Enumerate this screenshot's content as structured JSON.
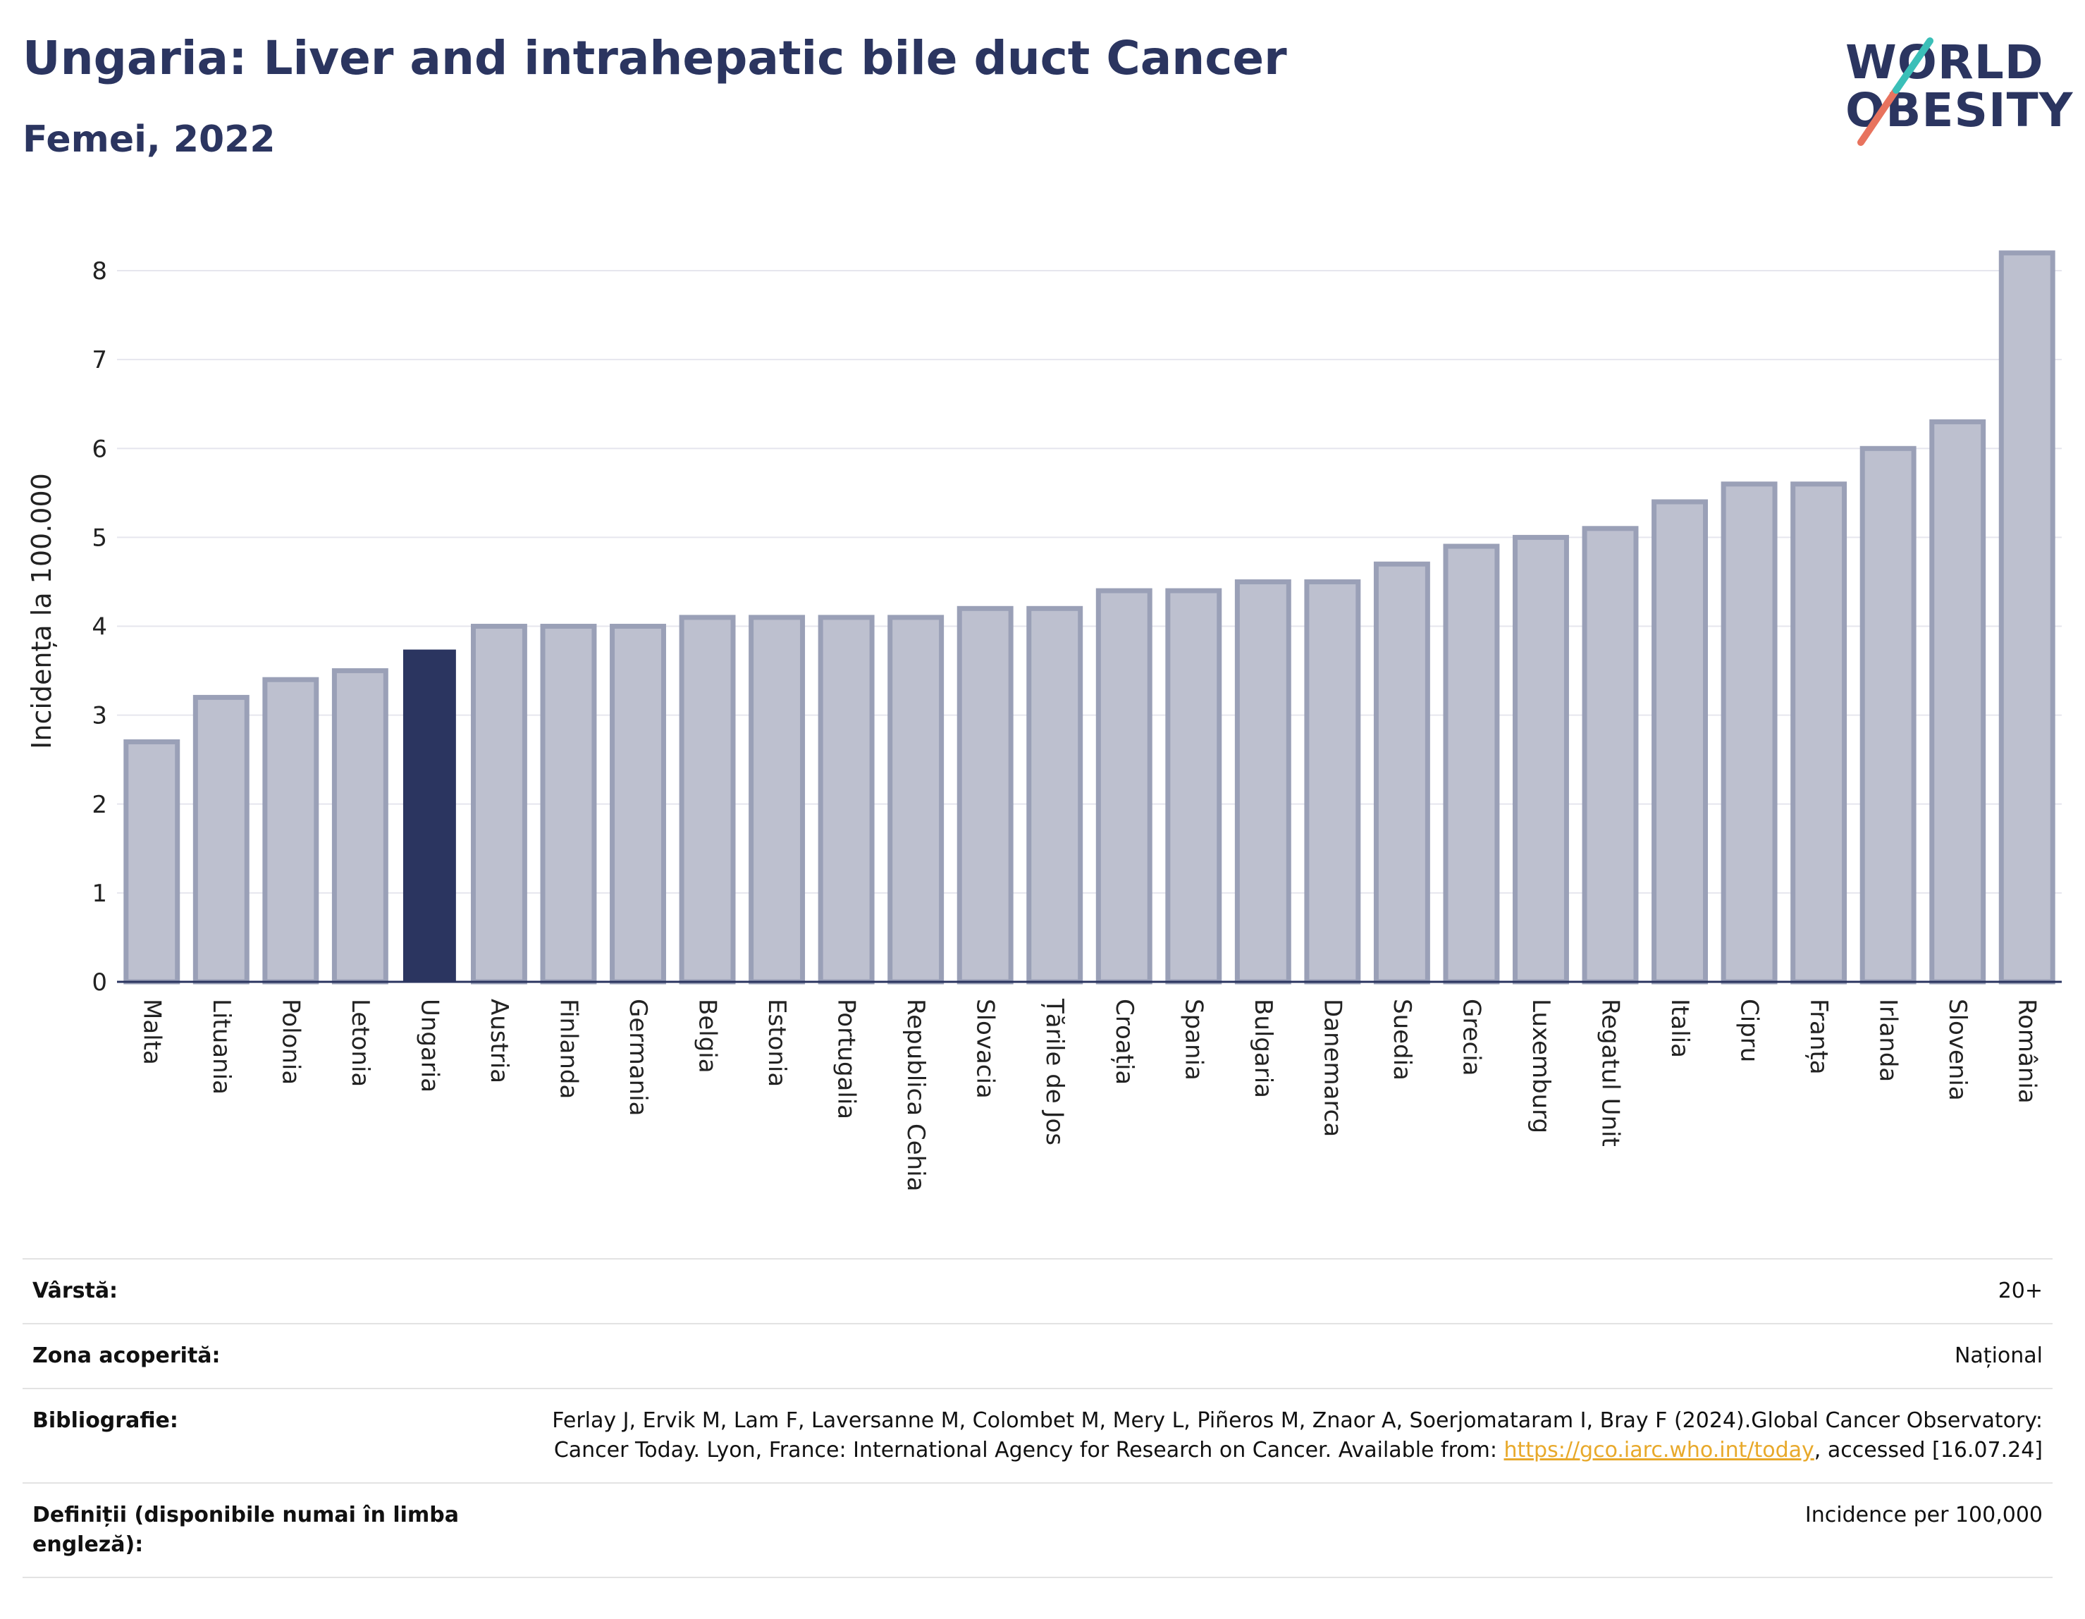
{
  "header": {
    "title": "Ungaria: Liver and intrahepatic bile duct Cancer",
    "subtitle": "Femei, 2022"
  },
  "logo": {
    "line1": "WORLD",
    "line2": "OBESITY"
  },
  "colors": {
    "bar": "#bdc0cf",
    "bar_stroke": "#9aa0b7",
    "highlight": "#2b3560",
    "grid": "#e6e6ee",
    "axis": "#2b3560",
    "logo_teal": "#3bbfb8",
    "logo_coral": "#e8735e"
  },
  "chart_data": {
    "type": "bar",
    "ylabel": "Incidența la 100.000",
    "ylim": [
      0,
      8.5
    ],
    "yticks": [
      0,
      1,
      2,
      3,
      4,
      5,
      6,
      7,
      8
    ],
    "grid": true,
    "highlight": "Ungaria",
    "categories": [
      "Malta",
      "Lituania",
      "Polonia",
      "Letonia",
      "Ungaria",
      "Austria",
      "Finlanda",
      "Germania",
      "Belgia",
      "Estonia",
      "Portugalia",
      "Republica Cehia",
      "Slovacia",
      "Țările de Jos",
      "Croația",
      "Spania",
      "Bulgaria",
      "Danemarca",
      "Suedia",
      "Grecia",
      "Luxemburg",
      "Regatul Unit",
      "Italia",
      "Cipru",
      "Franța",
      "Irlanda",
      "Slovenia",
      "România"
    ],
    "values": [
      2.7,
      3.2,
      3.4,
      3.5,
      3.73,
      4.0,
      4.0,
      4.0,
      4.1,
      4.1,
      4.1,
      4.1,
      4.2,
      4.2,
      4.4,
      4.4,
      4.5,
      4.5,
      4.7,
      4.9,
      5.0,
      5.1,
      5.4,
      5.6,
      5.6,
      6.0,
      6.3,
      8.2
    ]
  },
  "meta": {
    "age_label": "Vârstă:",
    "age_value": "20+",
    "coverage_label": "Zona acoperită:",
    "coverage_value": "Național",
    "bib_label": "Bibliografie:",
    "bib_text_1": "Ferlay J, Ervik M, Lam F, Laversanne M, Colombet M, Mery L, Piñeros M, Znaor A, Soerjomataram I, Bray F (2024).Global Cancer Observatory: Cancer Today. Lyon, France: International Agency for Research on Cancer. Available from: ",
    "bib_link": "https://gco.iarc.who.int/today",
    "bib_text_2": ", accessed [16.07.24]",
    "def_label": "Definiții (disponibile numai în limba engleză):",
    "def_value": "Incidence per 100,000"
  }
}
